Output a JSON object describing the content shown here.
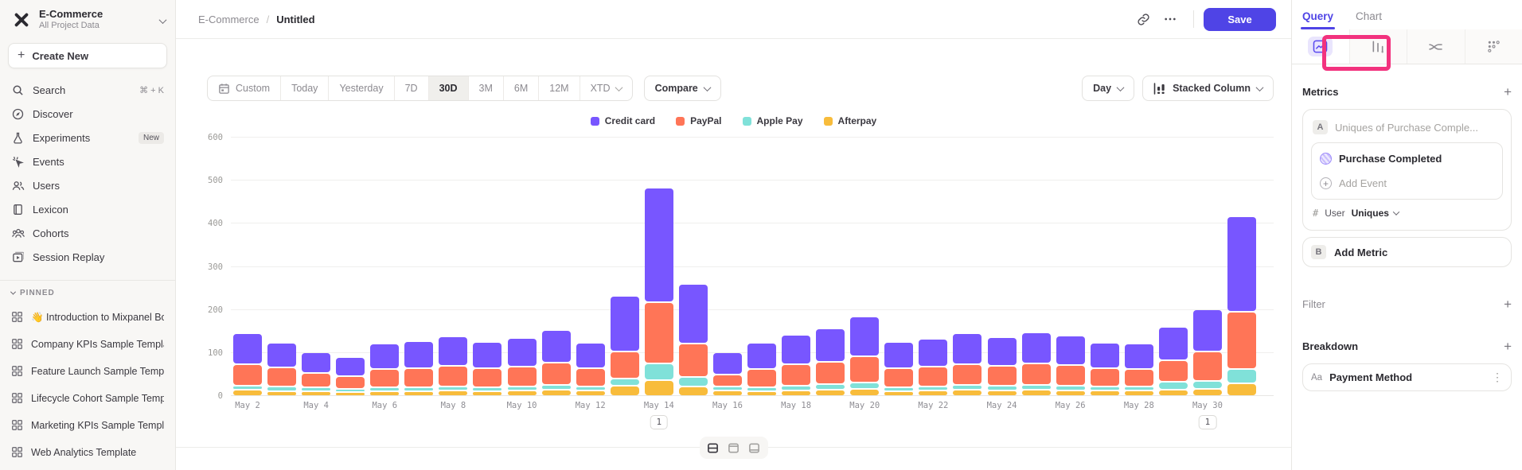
{
  "sidebar": {
    "project_name": "E-Commerce",
    "project_scope": "All Project Data",
    "create_new_label": "Create New",
    "items": [
      {
        "label": "Search",
        "icon": "search-icon",
        "shortcut": "⌘ + K"
      },
      {
        "label": "Discover",
        "icon": "discover-icon"
      },
      {
        "label": "Experiments",
        "icon": "experiments-icon",
        "badge": "New"
      },
      {
        "label": "Events",
        "icon": "events-icon"
      },
      {
        "label": "Users",
        "icon": "users-icon"
      },
      {
        "label": "Lexicon",
        "icon": "lexicon-icon"
      },
      {
        "label": "Cohorts",
        "icon": "cohorts-icon"
      },
      {
        "label": "Session Replay",
        "icon": "session-replay-icon"
      }
    ],
    "pinned_header": "PINNED",
    "pinned_items": [
      {
        "label": "👋 Introduction to Mixpanel Bo",
        "icon": "board-icon"
      },
      {
        "label": "Company KPIs Sample Templat",
        "icon": "board-icon"
      },
      {
        "label": "Feature Launch Sample Templa",
        "icon": "board-icon"
      },
      {
        "label": "Lifecycle Cohort Sample Temp",
        "icon": "board-icon"
      },
      {
        "label": "Marketing KPIs Sample Templat",
        "icon": "board-icon"
      },
      {
        "label": "Web Analytics Template",
        "icon": "board-icon"
      }
    ]
  },
  "breadcrumb": {
    "root": "E-Commerce",
    "separator": "/",
    "current": "Untitled"
  },
  "topbar": {
    "save_label": "Save"
  },
  "toolbar": {
    "date_ranges": [
      "Custom",
      "Today",
      "Yesterday",
      "7D",
      "30D",
      "3M",
      "6M",
      "12M",
      "XTD"
    ],
    "active_range": "30D",
    "compare_label": "Compare",
    "granularity": "Day",
    "chart_type": "Stacked Column"
  },
  "right_panel": {
    "tabs": [
      {
        "label": "Query",
        "active": true
      },
      {
        "label": "Chart",
        "active": false
      }
    ],
    "view_tabs": [
      {
        "icon": "insights-line-icon",
        "active": true
      },
      {
        "icon": "funnel-bars-icon",
        "active": false
      },
      {
        "icon": "flows-icon",
        "active": false
      },
      {
        "icon": "retention-grid-icon",
        "active": false
      }
    ],
    "metrics_label": "Metrics",
    "metric_a": {
      "letter": "A",
      "placeholder": "Uniques of Purchase Comple...",
      "event_name": "Purchase Completed",
      "add_event_label": "Add Event",
      "measure_hash": "#",
      "measure_entity": "User",
      "measure_type": "Uniques"
    },
    "metric_b": {
      "letter": "B",
      "label": "Add Metric"
    },
    "filter_label": "Filter",
    "breakdown_label": "Breakdown",
    "breakdown_item": {
      "prefix": "Aa",
      "label": "Payment Method"
    }
  },
  "chart_data": {
    "type": "bar",
    "variant": "stacked-column",
    "title": "",
    "xlabel": "",
    "ylabel": "",
    "ylim": [
      0,
      600
    ],
    "ytick_step": 100,
    "grid": true,
    "legend_position": "top-center",
    "x": [
      "May 2",
      "May 3",
      "May 4",
      "May 5",
      "May 6",
      "May 7",
      "May 8",
      "May 9",
      "May 10",
      "May 11",
      "May 12",
      "May 13",
      "May 14",
      "May 15",
      "May 16",
      "May 17",
      "May 18",
      "May 19",
      "May 20",
      "May 21",
      "May 22",
      "May 23",
      "May 24",
      "May 25",
      "May 26",
      "May 27",
      "May 28",
      "May 29",
      "May 30",
      "May 31"
    ],
    "x_tick_labels": [
      "May 2",
      "May 4",
      "May 6",
      "May 8",
      "May 10",
      "May 12",
      "May 14",
      "May 16",
      "May 18",
      "May 20",
      "May 22",
      "May 24",
      "May 26",
      "May 28",
      "May 30"
    ],
    "series": [
      {
        "name": "Credit card",
        "color": "#7856ff",
        "values": [
          72,
          58,
          48,
          45,
          60,
          62,
          68,
          60,
          66,
          76,
          58,
          128,
          267,
          139,
          52,
          60,
          70,
          78,
          92,
          62,
          65,
          72,
          67,
          73,
          68,
          60,
          59,
          76,
          98,
          222
        ]
      },
      {
        "name": "PayPal",
        "color": "#ff7557",
        "values": [
          50,
          44,
          33,
          30,
          42,
          44,
          48,
          44,
          46,
          52,
          42,
          63,
          141,
          78,
          28,
          42,
          49,
          52,
          62,
          43,
          45,
          49,
          46,
          50,
          48,
          42,
          41,
          50,
          68,
          133
        ]
      },
      {
        "name": "Apple Pay",
        "color": "#80e1d9",
        "values": [
          9,
          10,
          8,
          7,
          8,
          9,
          10,
          9,
          10,
          12,
          10,
          17,
          39,
          22,
          9,
          9,
          11,
          13,
          15,
          9,
          10,
          11,
          11,
          11,
          11,
          9,
          9,
          19,
          18,
          33
        ]
      },
      {
        "name": "Afterpay",
        "color": "#f8bc3b",
        "values": [
          15,
          12,
          12,
          9,
          12,
          12,
          13,
          12,
          13,
          14,
          13,
          24,
          37,
          22,
          13,
          12,
          13,
          14,
          16,
          12,
          13,
          14,
          13,
          14,
          13,
          13,
          13,
          15,
          17,
          30
        ]
      }
    ],
    "annotations": [
      {
        "x": "May 14",
        "label": "1"
      },
      {
        "x": "May 30",
        "label": "1"
      }
    ]
  }
}
